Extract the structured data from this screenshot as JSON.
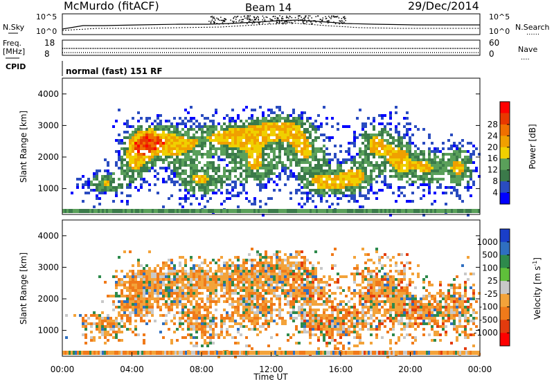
{
  "header": {
    "station": "McMurdo (fitACF)",
    "beam": "Beam 14",
    "date": "29/Dec/2014"
  },
  "noise_panel": {
    "left_label": "N.Sky",
    "right_label": "N.Search",
    "left_ticks": [
      "10^5",
      "10^0"
    ],
    "right_ticks": [
      "10^5",
      "10^0"
    ]
  },
  "freq_panel": {
    "left_label_1": "Freq.",
    "left_label_2": "[MHz]",
    "right_label": "Nave",
    "left_ticks": [
      "18",
      "8"
    ],
    "right_ticks": [
      "60",
      "0"
    ]
  },
  "cpid": {
    "label": "CPID",
    "mode_text": "normal (fast) 151 RF"
  },
  "colors": {
    "power_scale": [
      "#0000ff",
      "#2a4cc0",
      "#3b7a4a",
      "#5aa05a",
      "#f0d000",
      "#f0a000",
      "#f07000",
      "#e83800",
      "#ff0000"
    ],
    "velocity_scale": [
      "#1a3ec8",
      "#2f6fc0",
      "#2e8a4c",
      "#5fbf3a",
      "#c8c8c8",
      "#f3a33a",
      "#f07a1a",
      "#e23b0e",
      "#ff0000"
    ]
  },
  "chart_data": [
    {
      "type": "heatmap",
      "panel": "power",
      "ylabel": "Slant Range [km]",
      "y_ticks": [
        "1000",
        "2000",
        "3000",
        "4000"
      ],
      "ylim": [
        180,
        4500
      ],
      "xlim": [
        "00:00",
        "24:00"
      ],
      "colorbar_title": "Power [dB]",
      "colorbar_ticks": [
        "4",
        "8",
        "12",
        "16",
        "20",
        "24",
        "28"
      ],
      "colorbar_range": [
        0,
        30
      ]
    },
    {
      "type": "heatmap",
      "panel": "velocity",
      "ylabel": "Slant Range [km]",
      "y_ticks": [
        "1000",
        "2000",
        "3000",
        "4000"
      ],
      "ylim": [
        180,
        4500
      ],
      "xlim": [
        "00:00",
        "24:00"
      ],
      "x_ticks": [
        "00:00",
        "04:00",
        "08:00",
        "12:00",
        "16:00",
        "20:00",
        "00:00"
      ],
      "xlabel": "Time UT",
      "colorbar_title": "Velocity [m s",
      "colorbar_title_sup": "-1",
      "colorbar_title_end": "]",
      "colorbar_ticks": [
        "1000",
        "500",
        "100",
        "25",
        "-25",
        "-100",
        "-500",
        "-1000"
      ]
    }
  ]
}
